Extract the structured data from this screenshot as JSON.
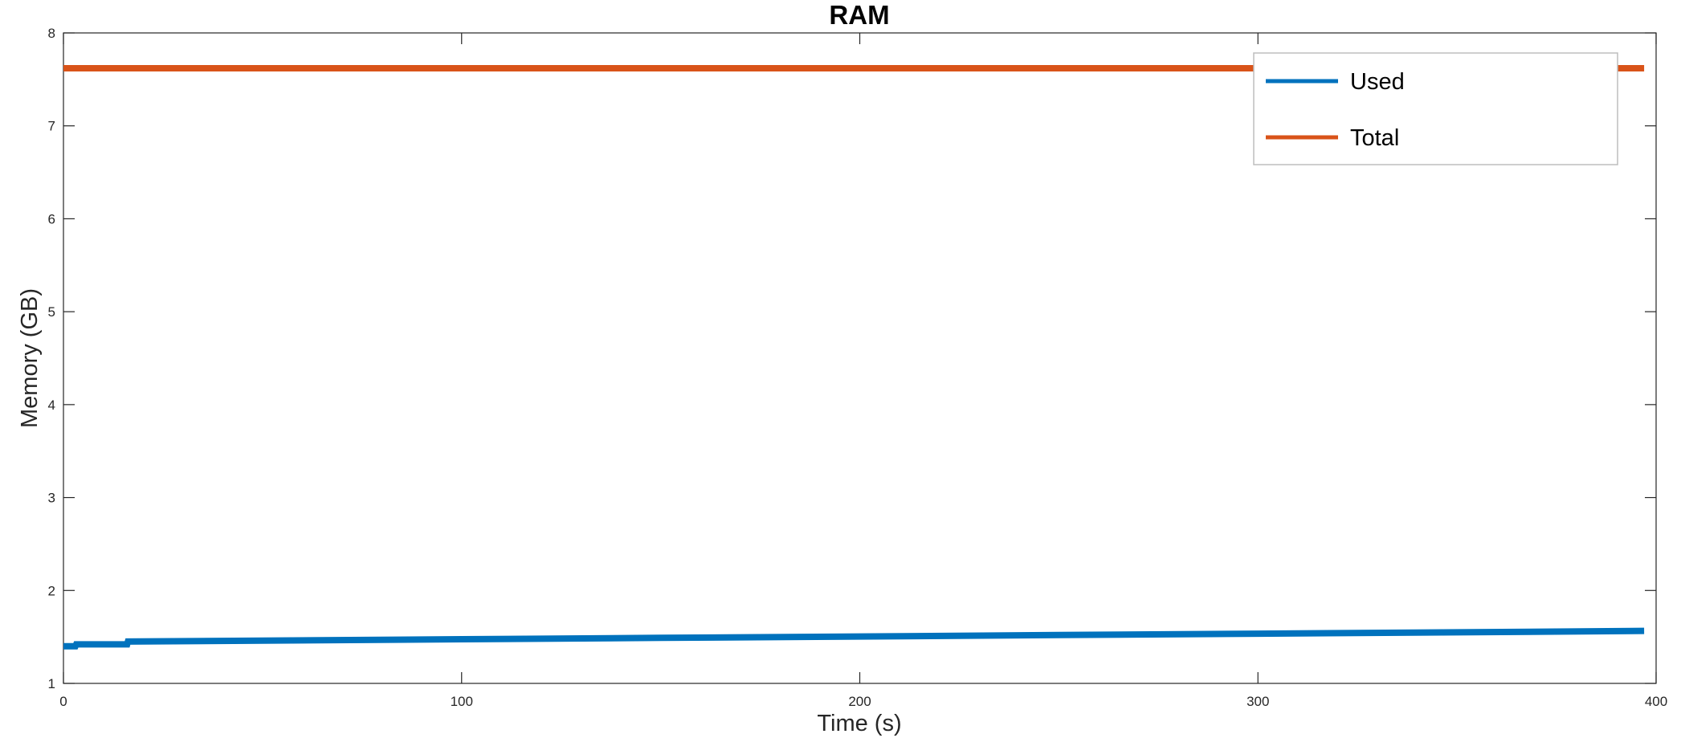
{
  "chart_data": {
    "type": "line",
    "title": "RAM",
    "xlabel": "Time (s)",
    "ylabel": "Memory (GB)",
    "xlim": [
      0,
      400
    ],
    "ylim": [
      1,
      8
    ],
    "xticks": [
      0,
      100,
      200,
      300,
      400
    ],
    "yticks": [
      1,
      2,
      3,
      4,
      5,
      6,
      7,
      8
    ],
    "grid": false,
    "legend_position": "top-right",
    "series": [
      {
        "name": "Used",
        "color": "#0072BD",
        "x": [
          0,
          3,
          3.2,
          16,
          16.2,
          50,
          100,
          150,
          200,
          250,
          300,
          350,
          397
        ],
        "y": [
          1.4,
          1.4,
          1.42,
          1.42,
          1.45,
          1.46,
          1.475,
          1.49,
          1.505,
          1.52,
          1.535,
          1.55,
          1.565
        ]
      },
      {
        "name": "Total",
        "color": "#D95319",
        "x": [
          0,
          397
        ],
        "y": [
          7.62,
          7.62
        ]
      }
    ]
  }
}
